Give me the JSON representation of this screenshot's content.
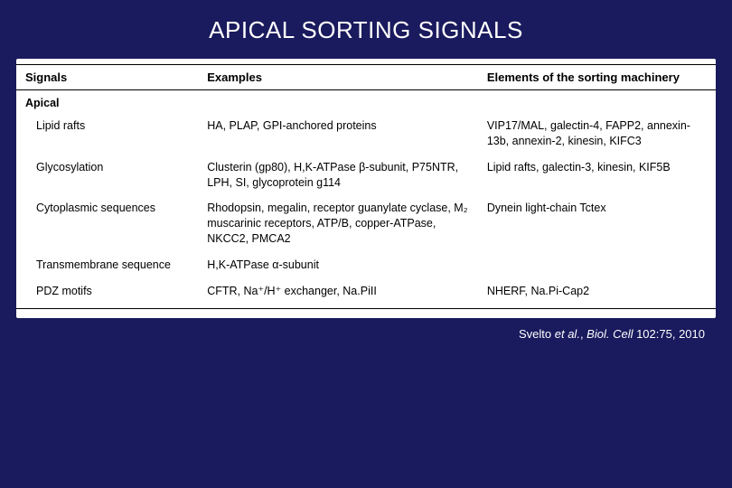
{
  "slide": {
    "title": "APICAL SORTING SIGNALS",
    "background_color": "#1a1a5e",
    "title_color": "#ffffff",
    "title_fontsize": 26
  },
  "table": {
    "type": "table",
    "background_color": "#ffffff",
    "text_color": "#000000",
    "border_color": "#000000",
    "header_fontsize": 13,
    "cell_fontsize": 12.5,
    "columns": [
      {
        "label": "Signals",
        "width_pct": 26
      },
      {
        "label": "Examples",
        "width_pct": 40
      },
      {
        "label": "Elements of the sorting machinery",
        "width_pct": 34
      }
    ],
    "section_label": "Apical",
    "rows": [
      {
        "signal": "Lipid rafts",
        "examples": "HA, PLAP, GPI-anchored proteins",
        "elements": "VIP17/MAL, galectin-4, FAPP2, annexin-13b, annexin-2, kinesin, KIFC3"
      },
      {
        "signal": "Glycosylation",
        "examples": "Clusterin (gp80), H,K-ATPase β-subunit, P75NTR, LPH, SI, glycoprotein g114",
        "elements": "Lipid rafts, galectin-3, kinesin, KIF5B"
      },
      {
        "signal": "Cytoplasmic sequences",
        "examples": "Rhodopsin, megalin, receptor guanylate cyclase, M₂ muscarinic receptors, ATP/B, copper-ATPase, NKCC2, PMCA2",
        "elements": "Dynein light-chain Tctex"
      },
      {
        "signal": "Transmembrane sequence",
        "examples": "H,K-ATPase α-subunit",
        "elements": ""
      },
      {
        "signal": "PDZ motifs",
        "examples": "CFTR, Na⁺/H⁺ exchanger, Na.PiII",
        "elements": "NHERF, Na.Pi-Cap2"
      }
    ]
  },
  "citation": {
    "prefix": "Svelto ",
    "ital1": "et al.",
    "mid": ", ",
    "ital2": "Biol. Cell",
    "suffix": " 102:75, 2010",
    "color": "#ffffff",
    "fontsize": 13
  }
}
